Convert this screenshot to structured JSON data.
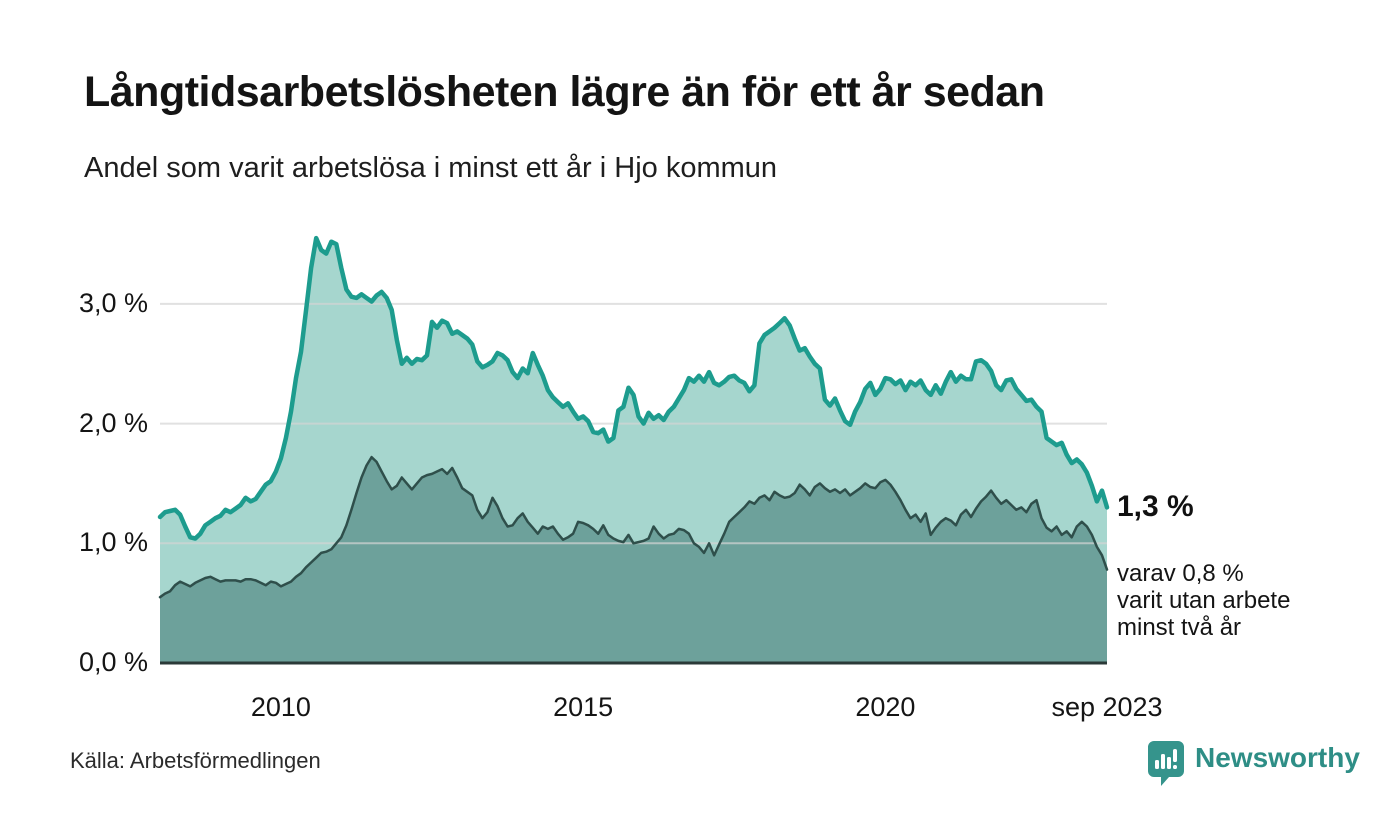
{
  "header": {
    "title": "Långtidsarbetslösheten lägre än för ett år sedan",
    "subtitle": "Andel som varit arbetslösa i minst ett år i Hjo kommun"
  },
  "annotation": {
    "latest_value": "1,3 %",
    "secondary_lines": [
      "varav 0,8 %",
      "varit utan arbete",
      "minst två år"
    ]
  },
  "footer": {
    "source": "Källa: Arbetsförmedlingen",
    "brand": "Newsworthy"
  },
  "chart_data": {
    "type": "area",
    "title": "Långtidsarbetslösheten lägre än för ett år sedan",
    "subtitle": "Andel som varit arbetslösa i minst ett år i Hjo kommun",
    "frequency": "monthly",
    "n_points": 189,
    "ylim": [
      0,
      3.7
    ],
    "grid": true,
    "legend": "none",
    "y_ticks": [
      {
        "v": 0,
        "label": "0,0 %"
      },
      {
        "v": 1,
        "label": "1,0 %"
      },
      {
        "v": 2,
        "label": "2,0 %"
      },
      {
        "v": 3,
        "label": "3,0 %"
      }
    ],
    "x_ticks": [
      {
        "label": "2010",
        "month_index": 24
      },
      {
        "label": "2015",
        "month_index": 84
      },
      {
        "label": "2020",
        "month_index": 144
      },
      {
        "label": "sep 2023",
        "month_index": 188
      }
    ],
    "colors": {
      "total_line": "#1d9c8e",
      "total_fill": "#a6d6ce",
      "two_year_line": "#2f4f4b",
      "two_year_fill": "#6da19b",
      "grid": "#d4d4d4",
      "baseline": "#2b3a38",
      "brand_teal": "#2e8e86"
    },
    "series": [
      {
        "name": "Arbetslösa minst ett år",
        "unit": "%",
        "last_value": 1.3,
        "values": [
          1.22,
          1.26,
          1.27,
          1.28,
          1.24,
          1.14,
          1.05,
          1.04,
          1.08,
          1.15,
          1.18,
          1.21,
          1.23,
          1.28,
          1.26,
          1.29,
          1.32,
          1.38,
          1.35,
          1.37,
          1.43,
          1.49,
          1.52,
          1.6,
          1.71,
          1.88,
          2.1,
          2.38,
          2.6,
          2.95,
          3.3,
          3.55,
          3.45,
          3.42,
          3.52,
          3.5,
          3.3,
          3.12,
          3.06,
          3.05,
          3.08,
          3.05,
          3.02,
          3.07,
          3.1,
          3.05,
          2.95,
          2.7,
          2.5,
          2.55,
          2.5,
          2.54,
          2.53,
          2.57,
          2.85,
          2.8,
          2.86,
          2.84,
          2.75,
          2.77,
          2.74,
          2.71,
          2.66,
          2.52,
          2.47,
          2.49,
          2.52,
          2.59,
          2.57,
          2.53,
          2.43,
          2.38,
          2.46,
          2.42,
          2.59,
          2.49,
          2.4,
          2.28,
          2.22,
          2.18,
          2.14,
          2.17,
          2.1,
          2.04,
          2.06,
          2.02,
          1.93,
          1.92,
          1.95,
          1.85,
          1.88,
          2.11,
          2.14,
          2.3,
          2.24,
          2.06,
          2.0,
          2.09,
          2.04,
          2.07,
          2.03,
          2.1,
          2.14,
          2.21,
          2.28,
          2.38,
          2.35,
          2.4,
          2.35,
          2.43,
          2.34,
          2.32,
          2.35,
          2.39,
          2.4,
          2.36,
          2.34,
          2.27,
          2.32,
          2.67,
          2.74,
          2.77,
          2.8,
          2.84,
          2.88,
          2.82,
          2.71,
          2.61,
          2.63,
          2.56,
          2.5,
          2.46,
          2.2,
          2.15,
          2.21,
          2.11,
          2.02,
          1.99,
          2.1,
          2.18,
          2.29,
          2.34,
          2.24,
          2.29,
          2.38,
          2.37,
          2.33,
          2.36,
          2.28,
          2.35,
          2.32,
          2.36,
          2.28,
          2.24,
          2.32,
          2.25,
          2.35,
          2.43,
          2.35,
          2.4,
          2.37,
          2.37,
          2.52,
          2.53,
          2.5,
          2.44,
          2.32,
          2.28,
          2.36,
          2.37,
          2.29,
          2.24,
          2.19,
          2.2,
          2.14,
          2.1,
          1.88,
          1.85,
          1.82,
          1.84,
          1.74,
          1.67,
          1.7,
          1.66,
          1.59,
          1.48,
          1.35,
          1.44,
          1.3
        ]
      },
      {
        "name": "varav utan arbete minst två år",
        "unit": "%",
        "last_value": 0.8,
        "values": [
          0.55,
          0.58,
          0.6,
          0.65,
          0.68,
          0.66,
          0.64,
          0.67,
          0.69,
          0.71,
          0.72,
          0.7,
          0.68,
          0.69,
          0.69,
          0.69,
          0.68,
          0.7,
          0.7,
          0.69,
          0.67,
          0.65,
          0.68,
          0.67,
          0.64,
          0.66,
          0.68,
          0.72,
          0.75,
          0.8,
          0.84,
          0.88,
          0.92,
          0.93,
          0.95,
          1.0,
          1.05,
          1.15,
          1.28,
          1.42,
          1.55,
          1.65,
          1.72,
          1.68,
          1.6,
          1.52,
          1.45,
          1.48,
          1.55,
          1.5,
          1.45,
          1.5,
          1.55,
          1.57,
          1.58,
          1.6,
          1.62,
          1.58,
          1.63,
          1.55,
          1.46,
          1.43,
          1.4,
          1.28,
          1.21,
          1.26,
          1.38,
          1.31,
          1.21,
          1.14,
          1.15,
          1.21,
          1.25,
          1.18,
          1.13,
          1.08,
          1.14,
          1.12,
          1.14,
          1.08,
          1.03,
          1.05,
          1.08,
          1.18,
          1.17,
          1.15,
          1.12,
          1.08,
          1.15,
          1.07,
          1.04,
          1.02,
          1.01,
          1.07,
          1.0,
          1.01,
          1.02,
          1.04,
          1.14,
          1.08,
          1.04,
          1.07,
          1.08,
          1.12,
          1.11,
          1.08,
          1.0,
          0.97,
          0.92,
          1.0,
          0.9,
          0.99,
          1.08,
          1.18,
          1.22,
          1.26,
          1.3,
          1.35,
          1.33,
          1.38,
          1.4,
          1.36,
          1.43,
          1.4,
          1.38,
          1.39,
          1.42,
          1.49,
          1.45,
          1.4,
          1.47,
          1.5,
          1.46,
          1.43,
          1.45,
          1.42,
          1.45,
          1.4,
          1.43,
          1.46,
          1.5,
          1.47,
          1.46,
          1.51,
          1.53,
          1.49,
          1.43,
          1.36,
          1.28,
          1.21,
          1.24,
          1.18,
          1.25,
          1.07,
          1.13,
          1.18,
          1.21,
          1.19,
          1.15,
          1.24,
          1.28,
          1.22,
          1.29,
          1.35,
          1.39,
          1.44,
          1.38,
          1.33,
          1.36,
          1.32,
          1.28,
          1.3,
          1.26,
          1.33,
          1.36,
          1.21,
          1.13,
          1.1,
          1.14,
          1.07,
          1.1,
          1.05,
          1.14,
          1.18,
          1.14,
          1.07,
          0.97,
          0.9,
          0.78
        ]
      }
    ]
  }
}
